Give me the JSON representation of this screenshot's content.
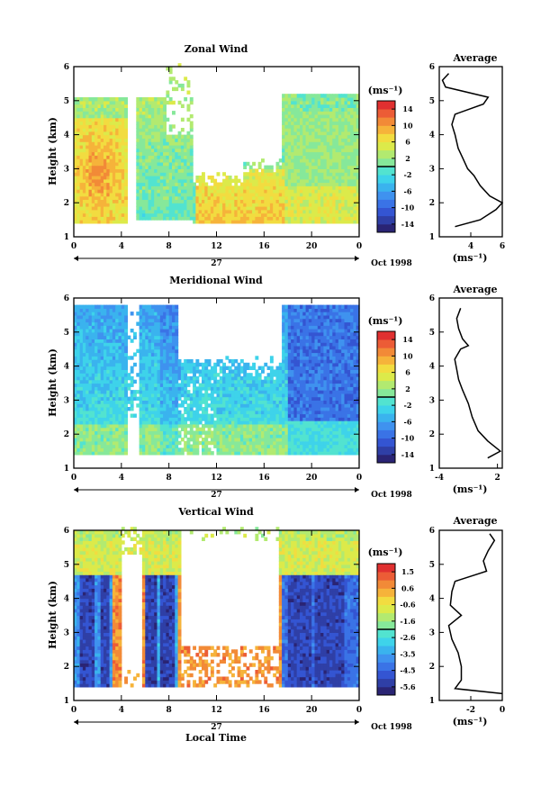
{
  "figure": {
    "xlabel": "Local Time",
    "date_label": "Oct 1998",
    "day_label": "27"
  },
  "chart_data": [
    {
      "type": "heatmap",
      "title": "Zonal Wind",
      "ylabel": "Height (km)",
      "xlabel": "Local Time",
      "x_ticks": [
        "0",
        "4",
        "8",
        "12",
        "16",
        "20",
        "0"
      ],
      "xlim": [
        0,
        24
      ],
      "y_ticks": [
        "1",
        "2",
        "3",
        "4",
        "5",
        "6"
      ],
      "ylim": [
        1,
        6
      ],
      "colorbar": {
        "unit": "(ms⁻¹)",
        "tick_labels": [
          "14",
          "10",
          "6",
          "2",
          "-2",
          "-6",
          "-10",
          "-14"
        ],
        "range": [
          -16,
          16
        ]
      },
      "coverage_hours": [
        [
          0,
          4.5
        ],
        [
          6.2,
          10
        ],
        [
          10.5,
          14.2
        ],
        [
          14.2,
          17.8
        ],
        [
          17.8,
          22.5
        ]
      ],
      "profile": {
        "title": "Average",
        "xlabel": "(ms⁻¹)",
        "x_ticks": [
          "4",
          "6"
        ],
        "xlim": [
          2,
          6
        ],
        "heights": [
          1.3,
          1.5,
          1.8,
          2.0,
          2.2,
          2.5,
          2.8,
          3.0,
          3.3,
          3.6,
          4.0,
          4.3,
          4.6,
          4.9,
          5.1,
          5.4,
          5.6,
          5.8
        ],
        "values": [
          3.0,
          4.6,
          5.6,
          6.0,
          5.2,
          4.6,
          4.2,
          3.8,
          3.5,
          3.2,
          3.0,
          2.8,
          3.0,
          4.8,
          5.1,
          2.4,
          2.2,
          2.6
        ]
      }
    },
    {
      "type": "heatmap",
      "title": "Meridional Wind",
      "ylabel": "Height (km)",
      "xlabel": "Local Time",
      "x_ticks": [
        "0",
        "4",
        "8",
        "12",
        "16",
        "20",
        "0"
      ],
      "xlim": [
        0,
        24
      ],
      "y_ticks": [
        "1",
        "2",
        "3",
        "4",
        "5",
        "6"
      ],
      "ylim": [
        1,
        6
      ],
      "colorbar": {
        "unit": "(ms⁻¹)",
        "tick_labels": [
          "14",
          "10",
          "6",
          "2",
          "-2",
          "-6",
          "-10",
          "-14"
        ],
        "range": [
          -16,
          16
        ]
      },
      "profile": {
        "title": "Average",
        "xlabel": "(ms⁻¹)",
        "x_ticks": [
          "-4",
          "2"
        ],
        "xlim": [
          -4,
          2.5
        ],
        "heights": [
          1.3,
          1.5,
          1.8,
          2.1,
          2.5,
          2.9,
          3.3,
          3.6,
          3.9,
          4.2,
          4.5,
          4.6,
          4.8,
          5.1,
          5.4,
          5.7
        ],
        "values": [
          1.0,
          2.3,
          1.0,
          0.0,
          -0.6,
          -1.0,
          -1.6,
          -2.0,
          -2.2,
          -2.4,
          -1.8,
          -1.0,
          -1.6,
          -2.0,
          -2.2,
          -1.8
        ]
      }
    },
    {
      "type": "heatmap",
      "title": "Vertical Wind",
      "ylabel": "Height (km)",
      "xlabel": "Local Time",
      "x_ticks": [
        "0",
        "4",
        "8",
        "12",
        "16",
        "20",
        "0"
      ],
      "xlim": [
        0,
        24
      ],
      "y_ticks": [
        "1",
        "2",
        "3",
        "4",
        "5",
        "6"
      ],
      "ylim": [
        1,
        6
      ],
      "colorbar": {
        "unit": "(ms⁻¹)",
        "tick_labels": [
          "1.5",
          "0.6",
          "-0.6",
          "-1.6",
          "-2.6",
          "-3.5",
          "-4.5",
          "-5.6"
        ],
        "range": [
          -6.1,
          2.0
        ]
      },
      "profile": {
        "title": "Average",
        "xlabel": "(ms⁻¹)",
        "x_ticks": [
          "-2",
          "0"
        ],
        "xlim": [
          -4,
          0
        ],
        "heights": [
          1.2,
          1.35,
          1.6,
          2.0,
          2.4,
          2.8,
          3.2,
          3.5,
          3.8,
          4.2,
          4.5,
          4.8,
          5.1,
          5.4,
          5.7,
          5.9
        ],
        "values": [
          0.0,
          -3.0,
          -2.6,
          -2.6,
          -2.8,
          -3.2,
          -3.4,
          -2.6,
          -3.3,
          -3.2,
          -3.0,
          -1.0,
          -1.2,
          -0.9,
          -0.5,
          -0.8
        ]
      }
    }
  ]
}
